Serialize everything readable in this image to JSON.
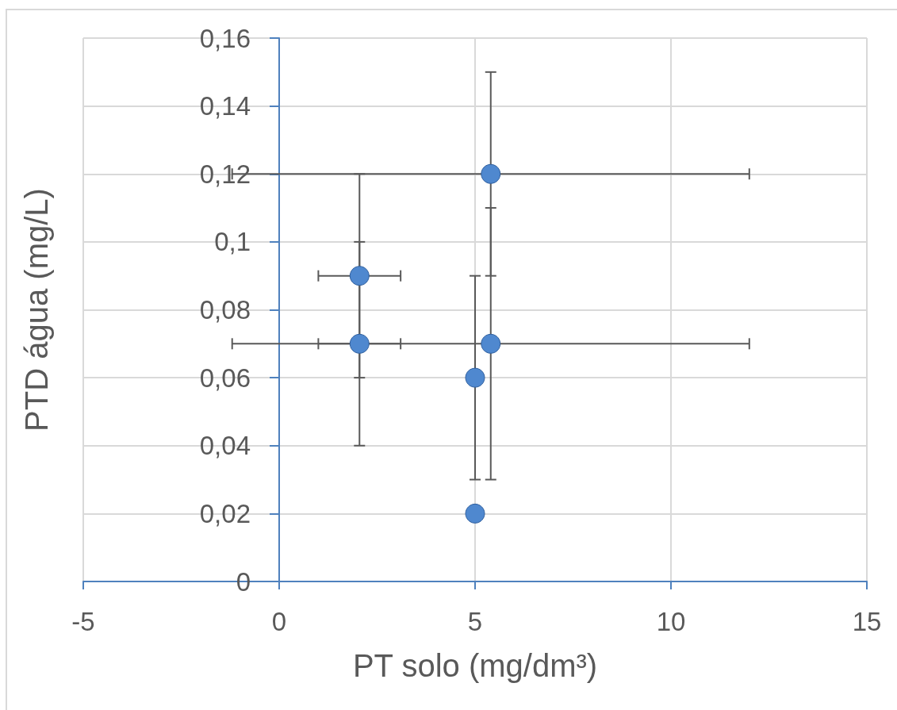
{
  "chart_data": {
    "type": "scatter",
    "xlabel": "PT solo (mg/dm³)",
    "ylabel": "PTD água (mg/L)",
    "x": [
      5.4,
      2.05,
      2.05,
      5.4,
      5.0,
      5.0
    ],
    "values": [
      0.12,
      0.09,
      0.07,
      0.07,
      0.06,
      0.02
    ],
    "errors": [
      0.03,
      0.03,
      0.03,
      0.04,
      0.03,
      null
    ],
    "xerrors": [
      6.6,
      1.05,
      1.05,
      6.6,
      null,
      null
    ],
    "color": "#4f88cf",
    "marker": "circle",
    "grid": true,
    "xlim": [
      -5,
      15
    ],
    "xticks": [
      -5,
      0,
      5,
      10,
      15
    ],
    "ylim": [
      0,
      0.16
    ],
    "yticks": [
      0,
      {
        "value": 0.02,
        "label": "0,02"
      },
      {
        "value": 0.04,
        "label": "0,04"
      },
      {
        "value": 0.06,
        "label": "0,06"
      },
      {
        "value": 0.08,
        "label": "0,08"
      },
      {
        "value": 0.1,
        "label": "0,1"
      },
      {
        "value": 0.12,
        "label": "0,12"
      },
      {
        "value": 0.14,
        "label": "0,14"
      },
      {
        "value": 0.16,
        "label": "0,16"
      }
    ]
  }
}
